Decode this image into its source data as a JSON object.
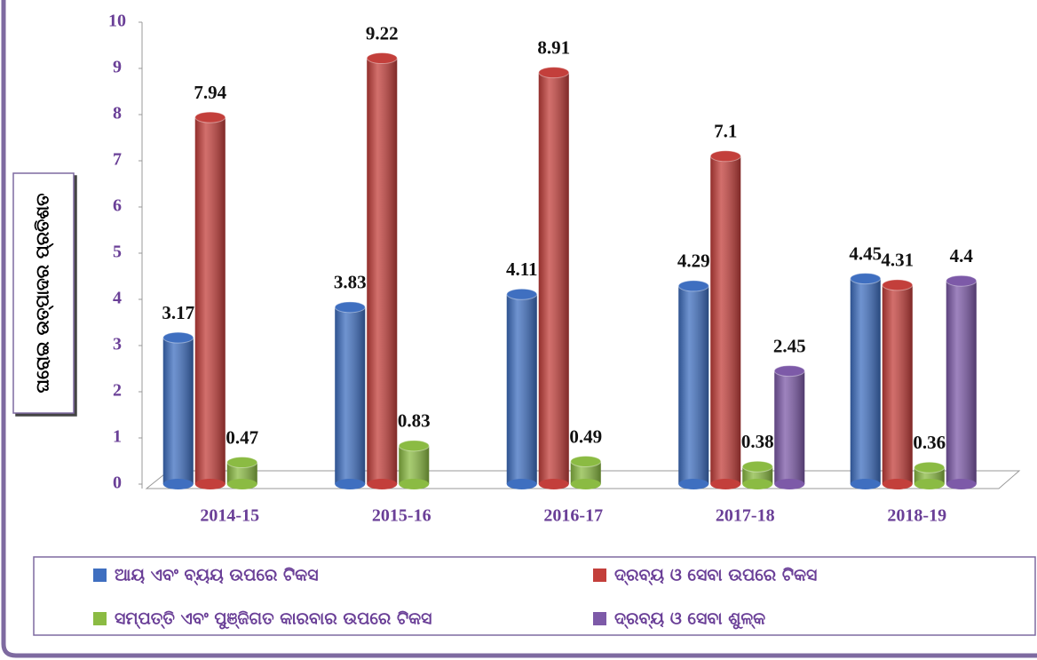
{
  "chart_data": {
    "type": "bar",
    "y_label": "ଘରୋଇ ଉତ୍ପାଦର ପ୍ରତିଶତ",
    "categories": [
      "2014-15",
      "2015-16",
      "2016-17",
      "2017-18",
      "2018-19"
    ],
    "series": [
      {
        "name": "ଆୟ ଏବଂ ବ୍ୟୟ ଉପରେ ଟିକସ",
        "color": "#3f6fc0",
        "values": [
          3.17,
          3.83,
          4.11,
          4.29,
          4.45
        ]
      },
      {
        "name": "ଦ୍ରବ୍ୟ ଓ ସେବା ଉପରେ ଟିକସ",
        "color": "#c33f3b",
        "values": [
          7.94,
          9.22,
          8.91,
          7.1,
          4.31
        ]
      },
      {
        "name": "ସମ୍ପତ୍ତି ଏବଂ ପୁଞ୍ଜିଗତ କାରବାର ଉପରେ ଟିକସ",
        "color": "#8bbb43",
        "values": [
          0.47,
          0.83,
          0.49,
          0.38,
          0.36
        ]
      },
      {
        "name": "ଦ୍ରବ୍ୟ ଓ ସେବା ଶୁଳ୍କ",
        "color": "#7d5aa8",
        "values": [
          null,
          null,
          null,
          2.45,
          4.4
        ]
      }
    ],
    "ylim": [
      0,
      10
    ],
    "yticks": [
      0,
      1,
      2,
      3,
      4,
      5,
      6,
      7,
      8,
      9,
      10
    ]
  }
}
